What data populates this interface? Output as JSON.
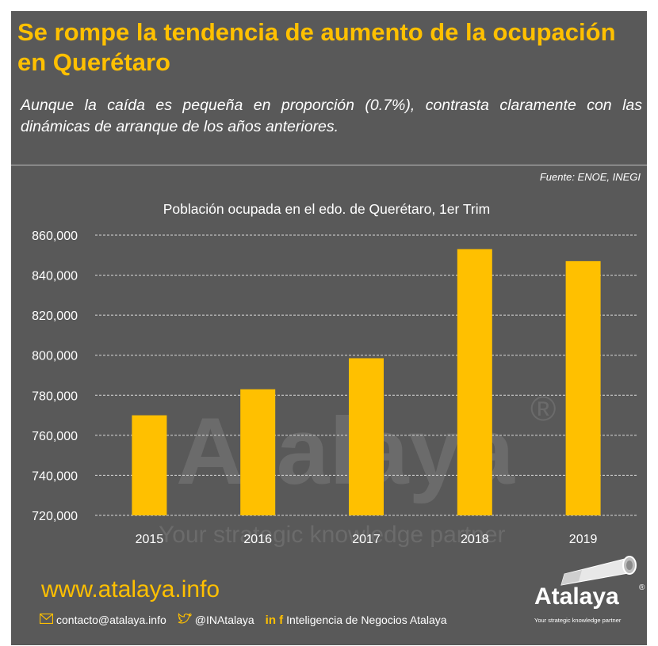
{
  "header": {
    "title": "Se rompe la tendencia de aumento de la ocupación en Querétaro",
    "subtitle": "Aunque la caída es pequeña en proporción (0.7%), contrasta claramente con las dinámicas de arranque de los años anteriores."
  },
  "source": "Fuente: ENOE, INEGI",
  "watermark": {
    "brand": "Atalaya",
    "tagline": "Your strategic knowledge partner",
    "reg": "®"
  },
  "chart_data": {
    "type": "bar",
    "title": "Población ocupada en el edo. de Querétaro, 1er Trim",
    "xlabel": "",
    "ylabel": "",
    "categories": [
      "2015",
      "2016",
      "2017",
      "2018",
      "2019"
    ],
    "values": [
      770000,
      783000,
      798500,
      853000,
      847000
    ],
    "ylim": [
      720000,
      860000
    ],
    "yticks": [
      720000,
      740000,
      760000,
      780000,
      800000,
      820000,
      840000,
      860000
    ],
    "ytick_labels": [
      "720,000",
      "740,000",
      "760,000",
      "780,000",
      "800,000",
      "820,000",
      "840,000",
      "860,000"
    ],
    "grid": true,
    "bar_color": "#ffc000"
  },
  "footer": {
    "url": "www.atalaya.info",
    "email_icon": "envelope-icon",
    "email": "contacto@atalaya.info",
    "twitter_icon": "twitter-bird-icon",
    "twitter": "@INAtalaya",
    "social_icons": "linkedin-facebook-icons",
    "social_glyphs": "in f",
    "company": "Inteligencia de Negocios Atalaya"
  },
  "logo": {
    "name": "Atalaya",
    "reg": "®",
    "tagline": "Your strategic knowledge partner",
    "icon": "telescope-icon"
  },
  "colors": {
    "background": "#595959",
    "accent": "#ffc000",
    "text": "#ffffff"
  }
}
